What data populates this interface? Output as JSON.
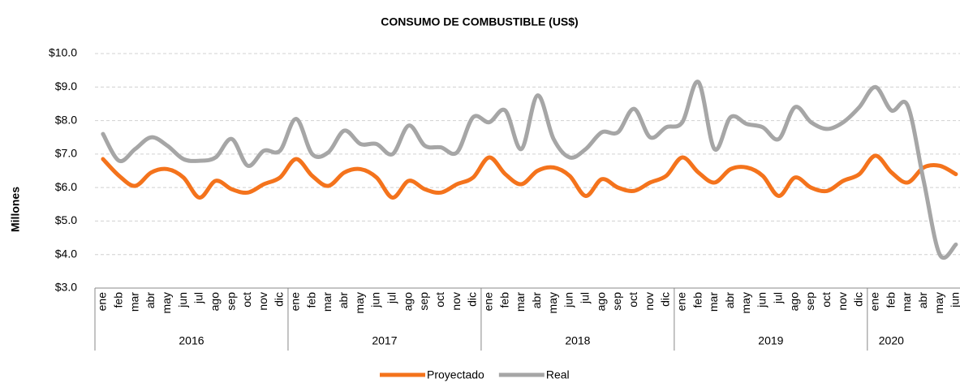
{
  "chart_data": {
    "type": "line",
    "title": "CONSUMO DE COMBUSTIBLE (US$)",
    "y_label": "Millones",
    "groups": [
      {
        "label": "2016",
        "categories": [
          "ene",
          "feb",
          "mar",
          "abr",
          "may",
          "jun",
          "jul",
          "ago",
          "sep",
          "oct",
          "nov",
          "dic"
        ]
      },
      {
        "label": "2017",
        "categories": [
          "ene",
          "feb",
          "mar",
          "abr",
          "may",
          "jun",
          "jul",
          "ago",
          "sep",
          "oct",
          "nov",
          "dic"
        ]
      },
      {
        "label": "2018",
        "categories": [
          "ene",
          "feb",
          "mar",
          "abr",
          "may",
          "jun",
          "jul",
          "ago",
          "sep",
          "oct",
          "nov",
          "dic"
        ]
      },
      {
        "label": "2019",
        "categories": [
          "ene",
          "feb",
          "mar",
          "abr",
          "may",
          "jun",
          "jul",
          "ago",
          "sep",
          "oct",
          "nov",
          "dic"
        ]
      },
      {
        "label": "2020",
        "categories": [
          "ene",
          "feb",
          "mar",
          "abr",
          "may",
          "jun"
        ]
      }
    ],
    "series": [
      {
        "name": "Proyectado",
        "color": "#f4731c",
        "values": [
          6.85,
          6.35,
          6.05,
          6.45,
          6.55,
          6.3,
          5.7,
          6.2,
          5.95,
          5.85,
          6.1,
          6.3,
          6.85,
          6.35,
          6.05,
          6.45,
          6.55,
          6.3,
          5.7,
          6.2,
          5.95,
          5.85,
          6.1,
          6.3,
          6.9,
          6.4,
          6.1,
          6.5,
          6.6,
          6.35,
          5.75,
          6.25,
          6.0,
          5.9,
          6.15,
          6.35,
          6.9,
          6.45,
          6.15,
          6.55,
          6.6,
          6.35,
          5.75,
          6.3,
          6.0,
          5.9,
          6.2,
          6.4,
          6.95,
          6.45,
          6.15,
          6.6,
          6.65,
          6.4
        ]
      },
      {
        "name": "Real",
        "color": "#a6a6a6",
        "values": [
          7.6,
          6.8,
          7.15,
          7.5,
          7.25,
          6.85,
          6.8,
          6.9,
          7.45,
          6.65,
          7.1,
          7.1,
          8.05,
          7.0,
          7.05,
          7.7,
          7.3,
          7.3,
          7.0,
          7.85,
          7.25,
          7.2,
          7.05,
          8.1,
          7.95,
          8.3,
          7.15,
          8.75,
          7.45,
          6.9,
          7.15,
          7.65,
          7.65,
          8.35,
          7.5,
          7.8,
          7.95,
          9.15,
          7.15,
          8.1,
          7.9,
          7.8,
          7.45,
          8.4,
          7.95,
          7.75,
          7.95,
          8.4,
          9.0,
          8.3,
          8.45,
          6.2,
          4.0,
          4.3
        ]
      }
    ],
    "ylim": [
      3,
      10
    ],
    "yticks": [
      {
        "value": 3,
        "label": "$3.0"
      },
      {
        "value": 4,
        "label": "$4.0"
      },
      {
        "value": 5,
        "label": "$5.0"
      },
      {
        "value": 6,
        "label": "$6.0"
      },
      {
        "value": 7,
        "label": "$7.0"
      },
      {
        "value": 8,
        "label": "$8.0"
      },
      {
        "value": 9,
        "label": "$9.0"
      },
      {
        "value": 10,
        "label": "$10.0"
      }
    ],
    "grid": true
  }
}
